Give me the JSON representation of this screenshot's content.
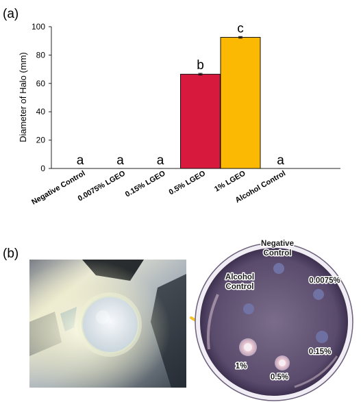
{
  "panel_a_label": "(a)",
  "panel_b_label": "(b)",
  "chart_data": {
    "type": "bar",
    "title": "",
    "xlabel": "",
    "ylabel": "Diameter of Halo (mm)",
    "ylim": [
      0,
      100
    ],
    "yticks": [
      0,
      20,
      40,
      60,
      80,
      100
    ],
    "grid": false,
    "legend": "none",
    "categories": [
      "Negative Control",
      "0.0075% LGEO",
      "0.15% LGEO",
      "0.5% LGEO",
      "1% LGEO",
      "Alcohol Control"
    ],
    "values": [
      0,
      0,
      0,
      66.5,
      92.5,
      0
    ],
    "errors": [
      0,
      0,
      0,
      0.6,
      0.6,
      0
    ],
    "letters": [
      "a",
      "a",
      "a",
      "b",
      "c",
      "a"
    ],
    "colors": [
      "#d6193c",
      "#d6193c",
      "#d6193c",
      "#d6193c",
      "#fbb903",
      "#d6193c"
    ]
  },
  "photo": {
    "description_colors": {
      "plate_rim": "#f0ecf4",
      "plate_fill": "#5e4f70",
      "arrow": "#f5c02a"
    },
    "plate_labels": {
      "negative_control": [
        "Negative",
        "Control"
      ],
      "alcohol_control": [
        "Alcohol",
        "Control"
      ],
      "lgeo_0075": "0.0075%",
      "lgeo_015": "0.15%",
      "lgeo_1": "1%",
      "lgeo_05": "0.5%"
    }
  }
}
